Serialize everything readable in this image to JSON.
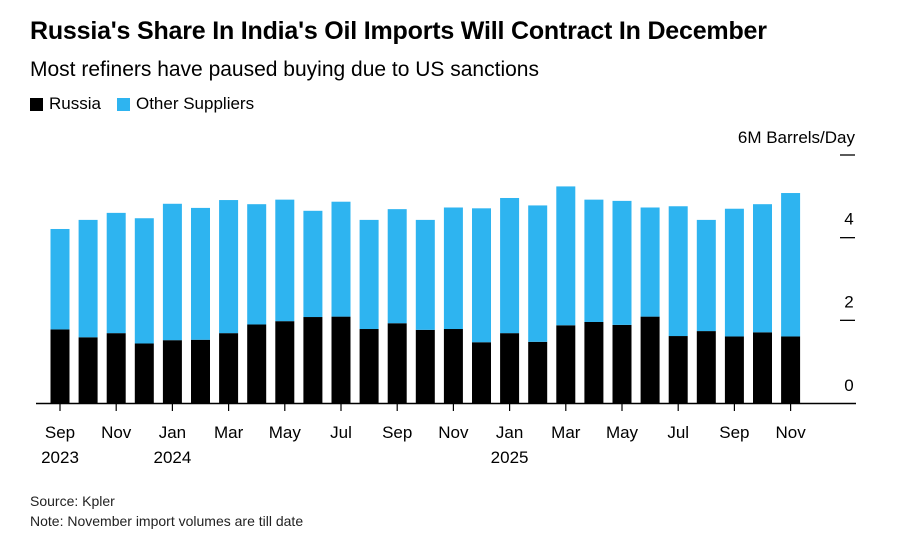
{
  "header": {
    "title": "Russia's Share In India's Oil Imports Will Contract In December",
    "subtitle": "Most refiners have paused buying due to US sanctions"
  },
  "legend": [
    {
      "label": "Russia",
      "color": "#000000"
    },
    {
      "label": "Other Suppliers",
      "color": "#2eb4f0"
    }
  ],
  "footer": {
    "source": "Source: Kpler",
    "note": "Note: November import volumes are till date"
  },
  "chart_data": {
    "type": "bar",
    "stacked": true,
    "title": "Russia's Share In India's Oil Imports Will Contract In December",
    "ylabel": "6M Barrels/Day",
    "ylim": [
      0,
      6
    ],
    "yticks": [
      {
        "value": 6,
        "label": ""
      },
      {
        "value": 4,
        "label": "4"
      },
      {
        "value": 2,
        "label": "2"
      },
      {
        "value": 0,
        "label": "0"
      }
    ],
    "categories": [
      "2023-09",
      "2023-10",
      "2023-11",
      "2023-12",
      "2024-01",
      "2024-02",
      "2024-03",
      "2024-04",
      "2024-05",
      "2024-06",
      "2024-07",
      "2024-08",
      "2024-09",
      "2024-10",
      "2024-11",
      "2024-12",
      "2025-01",
      "2025-02",
      "2025-03",
      "2025-04",
      "2025-05",
      "2025-06",
      "2025-07",
      "2025-08",
      "2025-09",
      "2025-10",
      "2025-11"
    ],
    "xtick_labels": [
      {
        "index": 0,
        "line1": "Sep",
        "line2": "2023"
      },
      {
        "index": 2,
        "line1": "Nov",
        "line2": ""
      },
      {
        "index": 4,
        "line1": "Jan",
        "line2": "2024"
      },
      {
        "index": 6,
        "line1": "Mar",
        "line2": ""
      },
      {
        "index": 8,
        "line1": "May",
        "line2": ""
      },
      {
        "index": 10,
        "line1": "Jul",
        "line2": ""
      },
      {
        "index": 12,
        "line1": "Sep",
        "line2": ""
      },
      {
        "index": 14,
        "line1": "Nov",
        "line2": ""
      },
      {
        "index": 16,
        "line1": "Jan",
        "line2": "2025"
      },
      {
        "index": 18,
        "line1": "Mar",
        "line2": ""
      },
      {
        "index": 20,
        "line1": "May",
        "line2": ""
      },
      {
        "index": 22,
        "line1": "Jul",
        "line2": ""
      },
      {
        "index": 24,
        "line1": "Sep",
        "line2": ""
      },
      {
        "index": 26,
        "line1": "Nov",
        "line2": ""
      }
    ],
    "series": [
      {
        "name": "Russia",
        "color": "#000000",
        "values": [
          1.78,
          1.59,
          1.69,
          1.44,
          1.52,
          1.53,
          1.69,
          1.9,
          1.98,
          2.08,
          2.09,
          1.79,
          1.93,
          1.77,
          1.79,
          1.47,
          1.69,
          1.48,
          1.88,
          1.96,
          1.89,
          2.09,
          1.62,
          1.74,
          1.61,
          1.71,
          1.61
        ]
      },
      {
        "name": "Other Suppliers",
        "color": "#2eb4f0",
        "values": [
          2.43,
          2.84,
          2.91,
          3.03,
          3.3,
          3.19,
          3.22,
          2.91,
          2.94,
          2.57,
          2.78,
          2.64,
          2.76,
          2.66,
          2.94,
          3.24,
          3.27,
          3.3,
          3.36,
          2.96,
          3.0,
          2.64,
          3.14,
          2.69,
          3.09,
          3.1,
          3.47
        ]
      }
    ]
  }
}
